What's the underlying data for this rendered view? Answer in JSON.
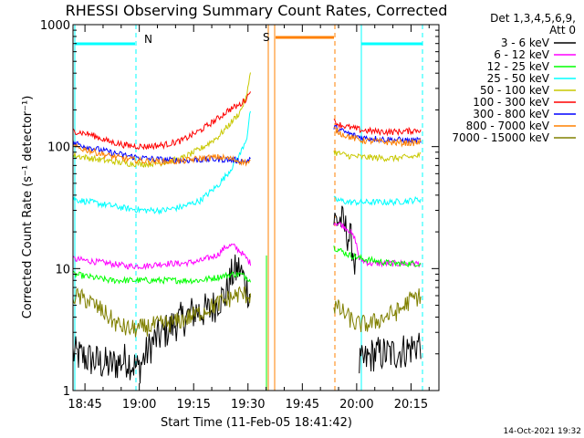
{
  "chart_data": {
    "type": "line",
    "title": "RHESSI Observing Summary Count Rates, Corrected",
    "xlabel": "Start Time (11-Feb-05 18:41:42)",
    "ylabel": "Corrected Count Rate (s⁻¹ detector⁻¹)",
    "yscale": "log",
    "ylim": [
      1,
      1000
    ],
    "xlim_minutes_after_1841": [
      0,
      101
    ],
    "y_ticks": [
      "1",
      "10",
      "100",
      "1000"
    ],
    "x_ticks": [
      {
        "label": "18:45",
        "minutes": 3.3
      },
      {
        "label": "19:00",
        "minutes": 18.3
      },
      {
        "label": "19:15",
        "minutes": 33.3
      },
      {
        "label": "19:30",
        "minutes": 48.3
      },
      {
        "label": "19:45",
        "minutes": 63.3
      },
      {
        "label": "20:00",
        "minutes": 78.3
      },
      {
        "label": "20:15",
        "minutes": 93.3
      }
    ],
    "legend_header": [
      "Det 1,3,4,5,6,9,",
      "Att 0"
    ],
    "legend_placement": "right",
    "flags": {
      "night_label": "N",
      "saa_label": "S",
      "night_color": "#00ffff",
      "saa_color": "#ff8000"
    },
    "timestamp": "14-Oct-2021 19:32",
    "series": [
      {
        "name": "3 - 6 keV",
        "color": "#000000",
        "segments": [
          {
            "x": [
              0,
              10,
              15,
              18,
              22,
              28,
              34,
              38,
              40,
              42,
              44,
              46,
              48,
              49
            ],
            "y": [
              2,
              1.6,
              1.8,
              1.5,
              2.5,
              3.5,
              4.5,
              4.5,
              5.5,
              6,
              9,
              10,
              7,
              6
            ]
          },
          {
            "x": [
              72,
              74,
              77,
              78
            ],
            "y": [
              25,
              25,
              16,
              10
            ]
          },
          {
            "x": [
              79,
              83,
              88,
              93,
              96
            ],
            "y": [
              1.6,
              2,
              2,
              2.2,
              2.5
            ]
          }
        ]
      },
      {
        "name": "6 - 12 keV",
        "color": "#ff00ff",
        "segments": [
          {
            "x": [
              0,
              5,
              10,
              15,
              20,
              25,
              30,
              35,
              40,
              42,
              44,
              46,
              48,
              49
            ],
            "y": [
              12,
              11.5,
              11,
              10.5,
              10.5,
              11,
              11,
              11.5,
              13,
              15,
              15.5,
              14,
              12,
              11
            ]
          },
          {
            "x": [
              72,
              74,
              76,
              77,
              78,
              79,
              82,
              88,
              93,
              96
            ],
            "y": [
              24,
              23,
              21,
              19,
              17,
              12,
              11,
              11,
              11,
              11
            ]
          }
        ]
      },
      {
        "name": "12 - 25 keV",
        "color": "#00ff00",
        "segments": [
          {
            "x": [
              0,
              5,
              10,
              15,
              20,
              25,
              30,
              35,
              40,
              44,
              46,
              48,
              49
            ],
            "y": [
              9,
              8.5,
              8,
              8,
              8,
              8,
              8,
              8,
              8.5,
              9,
              9,
              8.5,
              8
            ]
          },
          {
            "x": [
              72,
              76,
              80,
              88,
              93,
              96
            ],
            "y": [
              15,
              13,
              12,
              11,
              11,
              11
            ]
          }
        ]
      },
      {
        "name": "25 - 50 keV",
        "color": "#00ffff",
        "segments": [
          {
            "x": [
              0,
              5,
              10,
              15,
              20,
              25,
              30,
              35,
              40,
              43,
              46,
              48,
              49
            ],
            "y": [
              37,
              35,
              33,
              31,
              30,
              30,
              32,
              36,
              48,
              62,
              85,
              120,
              200
            ]
          },
          {
            "x": [
              72,
              76,
              80,
              88,
              93,
              96
            ],
            "y": [
              37,
              35,
              35,
              35,
              36,
              37
            ]
          }
        ]
      },
      {
        "name": "50 - 100 keV",
        "color": "#c8c800",
        "segments": [
          {
            "x": [
              0,
              5,
              10,
              15,
              20,
              25,
              30,
              35,
              40,
              43,
              46,
              48,
              49
            ],
            "y": [
              85,
              80,
              76,
              73,
              72,
              74,
              80,
              95,
              120,
              150,
              190,
              260,
              430
            ]
          },
          {
            "x": [
              72,
              76,
              80,
              88,
              93,
              96
            ],
            "y": [
              90,
              84,
              82,
              80,
              82,
              85
            ]
          }
        ]
      },
      {
        "name": "100 - 300 keV",
        "color": "#ff0000",
        "segments": [
          {
            "x": [
              0,
              5,
              10,
              15,
              20,
              25,
              30,
              35,
              40,
              43,
              46,
              48,
              49
            ],
            "y": [
              135,
              125,
              110,
              102,
              100,
              103,
              112,
              135,
              170,
              200,
              220,
              250,
              300
            ]
          },
          {
            "x": [
              72,
              74,
              77,
              80,
              84,
              88,
              93,
              96
            ],
            "y": [
              160,
              150,
              142,
              136,
              133,
              132,
              134,
              138
            ]
          }
        ]
      },
      {
        "name": "300 - 800 keV",
        "color": "#0000ff",
        "segments": [
          {
            "x": [
              0,
              5,
              10,
              15,
              20,
              25,
              30,
              35,
              40,
              43,
              46,
              48,
              49
            ],
            "y": [
              108,
              98,
              90,
              84,
              80,
              78,
              77,
              78,
              79,
              78,
              77,
              76,
              78
            ]
          },
          {
            "x": [
              72,
              74,
              77,
              80,
              84,
              88,
              93,
              96
            ],
            "y": [
              145,
              135,
              125,
              118,
              116,
              114,
              112,
              112
            ]
          }
        ]
      },
      {
        "name": "800 - 7000 keV",
        "color": "#ff8000",
        "segments": [
          {
            "x": [
              0,
              5,
              10,
              15,
              20,
              25,
              30,
              35,
              40,
              43,
              46,
              48,
              49
            ],
            "y": [
              100,
              92,
              84,
              79,
              76,
              75,
              76,
              80,
              82,
              80,
              76,
              74,
              75
            ]
          },
          {
            "x": [
              72,
              74,
              77,
              80,
              84,
              88,
              93,
              96
            ],
            "y": [
              140,
              128,
              118,
              112,
              110,
              108,
              107,
              108
            ]
          }
        ]
      },
      {
        "name": "7000 - 15000 keV",
        "color": "#808000",
        "segments": [
          {
            "x": [
              0,
              4,
              8,
              12,
              15,
              18,
              22,
              28,
              34,
              38,
              42,
              46,
              49
            ],
            "y": [
              6,
              5.5,
              4.5,
              3.5,
              3.2,
              3.2,
              3.4,
              3.6,
              4.2,
              4.8,
              5.5,
              6.2,
              6
            ]
          },
          {
            "x": [
              72,
              74,
              76,
              78,
              82,
              86,
              90,
              93,
              96
            ],
            "y": [
              5,
              4.5,
              4,
              3.5,
              3.5,
              4,
              4.5,
              5.5,
              6
            ]
          }
        ]
      }
    ]
  }
}
